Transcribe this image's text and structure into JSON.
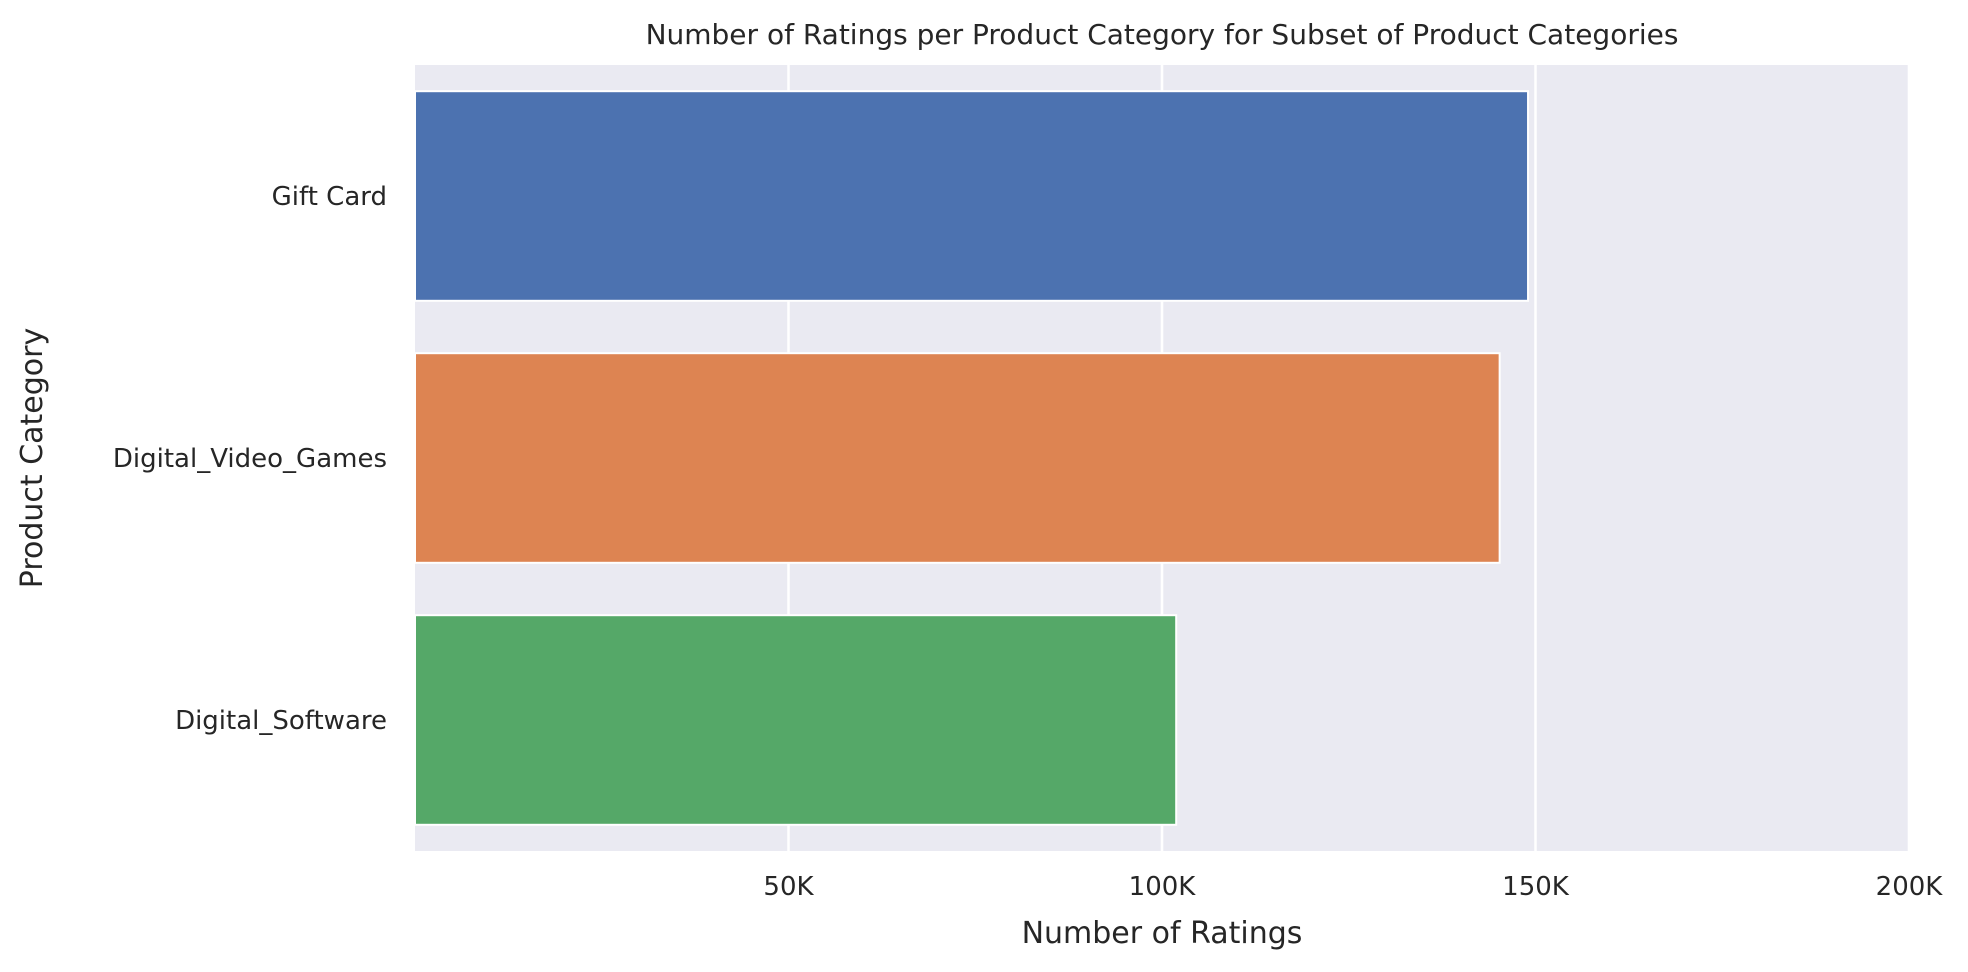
{
  "chart_data": {
    "type": "bar",
    "orientation": "horizontal",
    "title": "Number of Ratings per Product Category for Subset of Product Categories",
    "xlabel": "Number of Ratings",
    "ylabel": "Product Category",
    "categories": [
      "Gift Card",
      "Digital_Video_Games",
      "Digital_Software"
    ],
    "values": [
      149000,
      145200,
      101900
    ],
    "xlim": [
      0,
      200000
    ],
    "xticks": [
      {
        "value": 50000,
        "label": "50K"
      },
      {
        "value": 100000,
        "label": "100K"
      },
      {
        "value": 150000,
        "label": "150K"
      },
      {
        "value": 200000,
        "label": "200K"
      }
    ],
    "grid": true,
    "legend": "none",
    "colors": [
      "#4c72b0",
      "#dd8452",
      "#55a868"
    ],
    "background": "#eaeaf2"
  }
}
